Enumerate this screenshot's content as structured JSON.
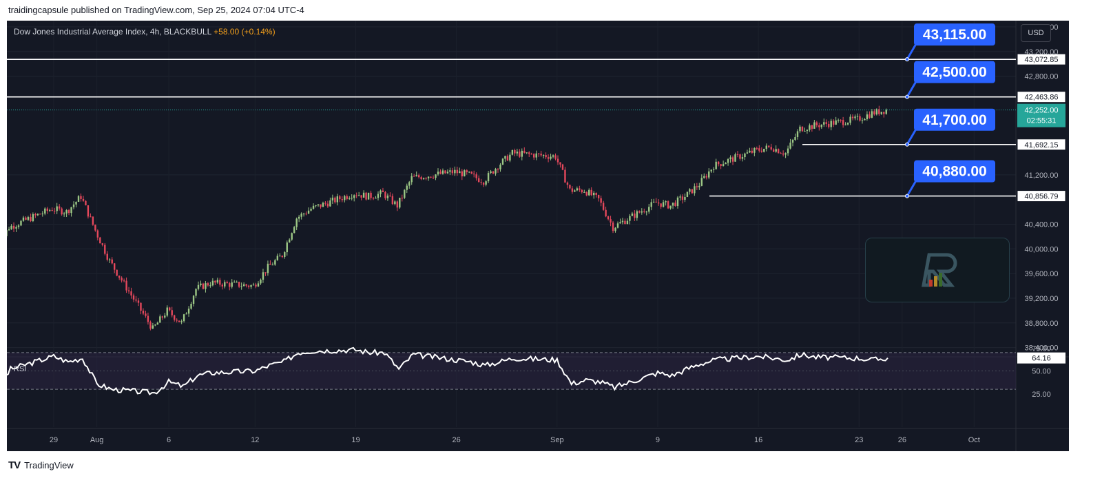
{
  "header": {
    "published": "traidingcapsule published on TradingView.com, Sep 25, 2024 07:04 UTC-4"
  },
  "legend": {
    "title": "Dow Jones Industrial Average Index, 4h, BLACKBULL",
    "change": "+58.00 (+0.14%)"
  },
  "currency": "USD",
  "footer": {
    "brand": "TradingView",
    "logo_icon": "tradingview-logo-icon"
  },
  "colors": {
    "background": "#141824",
    "up": "#9cc785",
    "down": "#e5485c",
    "label_blue": "#2962ff",
    "level_line": "#ffffff",
    "rsi_line": "#ffffff",
    "rsi_band": "#2a2540",
    "price_tag": "#26a69a"
  },
  "chart_data": [
    {
      "type": "candlestick",
      "title": "Dow Jones Industrial Average Index, 4h, BLACKBULL",
      "x_ticks": [
        "29",
        "Aug",
        "6",
        "12",
        "19",
        "26",
        "Sep",
        "9",
        "16",
        "23",
        "26",
        "Oct"
      ],
      "y_ticks": [
        "43,600.00",
        "43,200.00",
        "42,800.00",
        "41,200.00",
        "40,400.00",
        "40,000.00",
        "39,600.00",
        "39,200.00",
        "38,800.00",
        "38,400.00"
      ],
      "ylim": [
        38250,
        43700
      ],
      "close_path": [
        [
          "Jul 25",
          39950
        ],
        [
          "Jul 26",
          40350
        ],
        [
          "Jul 29",
          40650
        ],
        [
          "Jul 30",
          40600
        ],
        [
          "Jul 31",
          40850
        ],
        [
          "Aug 1",
          40300
        ],
        [
          "Aug 2",
          39800
        ],
        [
          "Aug 5",
          38700
        ],
        [
          "Aug 6",
          39000
        ],
        [
          "Aug 7",
          38800
        ],
        [
          "Aug 8",
          39350
        ],
        [
          "Aug 9",
          39450
        ],
        [
          "Aug 12",
          39400
        ],
        [
          "Aug 13",
          39700
        ],
        [
          "Aug 14",
          39900
        ],
        [
          "Aug 15",
          40500
        ],
        [
          "Aug 16",
          40650
        ],
        [
          "Aug 19",
          40900
        ],
        [
          "Aug 20",
          40850
        ],
        [
          "Aug 21",
          40900
        ],
        [
          "Aug 22",
          40700
        ],
        [
          "Aug 23",
          41150
        ],
        [
          "Aug 26",
          41250
        ],
        [
          "Aug 27",
          41200
        ],
        [
          "Aug 28",
          41100
        ],
        [
          "Aug 29",
          41350
        ],
        [
          "Aug 30",
          41550
        ],
        [
          "Sep 2",
          41500
        ],
        [
          "Sep 3",
          40950
        ],
        [
          "Sep 4",
          40950
        ],
        [
          "Sep 5",
          40800
        ],
        [
          "Sep 6",
          40350
        ],
        [
          "Sep 9",
          40750
        ],
        [
          "Sep 10",
          40700
        ],
        [
          "Sep 11",
          40850
        ],
        [
          "Sep 12",
          41050
        ],
        [
          "Sep 13",
          41350
        ],
        [
          "Sep 16",
          41600
        ],
        [
          "Sep 17",
          41650
        ],
        [
          "Sep 18",
          41550
        ],
        [
          "Sep 19",
          41950
        ],
        [
          "Sep 20",
          42000
        ],
        [
          "Sep 23",
          42100
        ],
        [
          "Sep 24",
          42200
        ],
        [
          "Sep 25",
          42252
        ]
      ],
      "last_price": "42,252.00",
      "countdown": "02:55:31",
      "levels": [
        {
          "value": 43072.85,
          "axis_label": "43,072.85",
          "callout": "43,115.00"
        },
        {
          "value": 42463.86,
          "axis_label": "42,463.86",
          "callout": "42,500.00"
        },
        {
          "value": 41692.15,
          "axis_label": "41,692.15",
          "callout": "41,700.00"
        },
        {
          "value": 40856.79,
          "axis_label": "40,856.79",
          "callout": "40,880.00"
        }
      ]
    },
    {
      "type": "line",
      "title": "RSI",
      "y_ticks": [
        "75.00",
        "50.00",
        "25.00"
      ],
      "bands": [
        30,
        70
      ],
      "last_value": "64.16",
      "path": [
        [
          "Jul 25",
          28
        ],
        [
          "Jul 26",
          52
        ],
        [
          "Jul 29",
          66
        ],
        [
          "Jul 30",
          60
        ],
        [
          "Jul 31",
          64
        ],
        [
          "Aug 1",
          36
        ],
        [
          "Aug 2",
          30
        ],
        [
          "Aug 5",
          26
        ],
        [
          "Aug 6",
          38
        ],
        [
          "Aug 7",
          33
        ],
        [
          "Aug 8",
          45
        ],
        [
          "Aug 9",
          48
        ],
        [
          "Aug 12",
          50
        ],
        [
          "Aug 13",
          56
        ],
        [
          "Aug 14",
          60
        ],
        [
          "Aug 15",
          70
        ],
        [
          "Aug 16",
          72
        ],
        [
          "Aug 19",
          73
        ],
        [
          "Aug 20",
          70
        ],
        [
          "Aug 21",
          70
        ],
        [
          "Aug 22",
          52
        ],
        [
          "Aug 23",
          68
        ],
        [
          "Aug 26",
          62
        ],
        [
          "Aug 27",
          60
        ],
        [
          "Aug 28",
          56
        ],
        [
          "Aug 29",
          60
        ],
        [
          "Aug 30",
          64
        ],
        [
          "Sep 2",
          62
        ],
        [
          "Sep 3",
          36
        ],
        [
          "Sep 4",
          40
        ],
        [
          "Sep 5",
          38
        ],
        [
          "Sep 6",
          32
        ],
        [
          "Sep 9",
          48
        ],
        [
          "Sep 10",
          45
        ],
        [
          "Sep 11",
          52
        ],
        [
          "Sep 12",
          58
        ],
        [
          "Sep 13",
          62
        ],
        [
          "Sep 16",
          66
        ],
        [
          "Sep 17",
          64
        ],
        [
          "Sep 18",
          62
        ],
        [
          "Sep 19",
          68
        ],
        [
          "Sep 20",
          65
        ],
        [
          "Sep 23",
          64
        ],
        [
          "Sep 24",
          62
        ],
        [
          "Sep 25",
          64.16
        ]
      ]
    }
  ]
}
